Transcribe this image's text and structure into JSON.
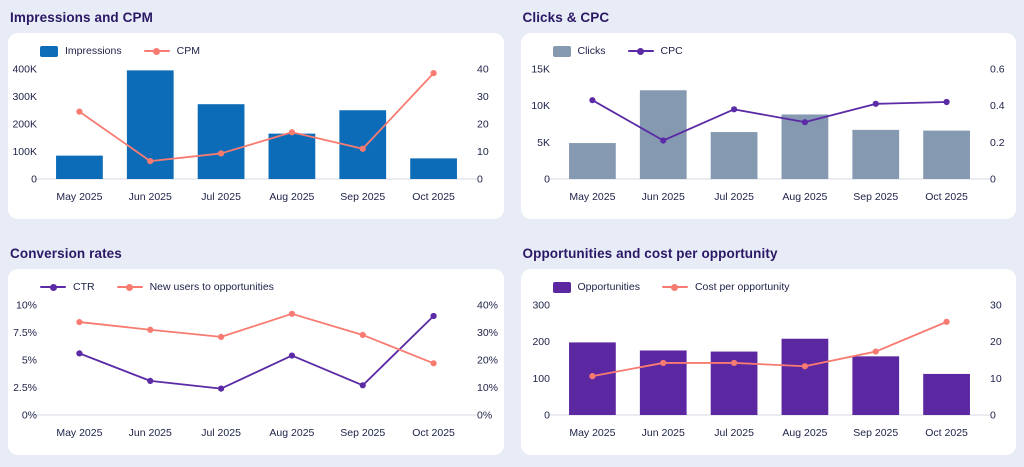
{
  "page": {
    "background_color": "#e8ecf7",
    "card_color": "#ffffff",
    "title_color": "#2b1865",
    "axis_text_color": "#20244a"
  },
  "chart_data": [
    {
      "type": "bar",
      "title": "Impressions and CPM",
      "categories": [
        "May 2025",
        "Jun 2025",
        "Jul 2025",
        "Aug 2025",
        "Sep 2025",
        "Oct 2025"
      ],
      "grid": false,
      "legend_position": "top-left",
      "left_axis": {
        "max": 400000,
        "ticks": [
          "0",
          "100K",
          "200K",
          "300K",
          "400K"
        ]
      },
      "right_axis": {
        "max": 40,
        "ticks": [
          "0",
          "10",
          "20",
          "30",
          "40"
        ]
      },
      "series": [
        {
          "name": "Impressions",
          "type": "bar",
          "axis": "left",
          "color": "#0c6cb8",
          "values": [
            85000,
            395000,
            272000,
            165000,
            250000,
            75000
          ]
        },
        {
          "name": "CPM",
          "type": "line",
          "axis": "right",
          "color": "#f87b72",
          "values": [
            24.5,
            6.5,
            9.3,
            17,
            11,
            38.5
          ]
        }
      ]
    },
    {
      "type": "bar",
      "title": "Clicks & CPC",
      "categories": [
        "May 2025",
        "Jun 2025",
        "Jul 2025",
        "Aug 2025",
        "Sep 2025",
        "Oct 2025"
      ],
      "grid": false,
      "legend_position": "top-left",
      "left_axis": {
        "max": 15000,
        "ticks": [
          "0",
          "5K",
          "10K",
          "15K"
        ]
      },
      "right_axis": {
        "max": 0.6,
        "ticks": [
          "0",
          "0.2",
          "0.4",
          "0.6"
        ]
      },
      "series": [
        {
          "name": "Clicks",
          "type": "bar",
          "axis": "left",
          "color": "#8599b1",
          "values": [
            4900,
            12100,
            6400,
            8800,
            6700,
            6600
          ]
        },
        {
          "name": "CPC",
          "type": "line",
          "axis": "right",
          "color": "#5b2aa5",
          "values": [
            0.43,
            0.21,
            0.38,
            0.31,
            0.41,
            0.42
          ]
        }
      ]
    },
    {
      "type": "line",
      "title": "Conversion rates",
      "categories": [
        "May 2025",
        "Jun 2025",
        "Jul 2025",
        "Aug 2025",
        "Sep 2025",
        "Oct 2025"
      ],
      "grid": false,
      "legend_position": "top-left",
      "left_axis": {
        "max": 10,
        "ticks": [
          "0%",
          "2.5%",
          "5%",
          "7.5%",
          "10%"
        ]
      },
      "right_axis": {
        "max": 40,
        "ticks": [
          "0%",
          "10%",
          "20%",
          "30%",
          "40%"
        ]
      },
      "series": [
        {
          "name": "CTR",
          "type": "line",
          "axis": "left",
          "color": "#5b2aa5",
          "values": [
            5.6,
            3.1,
            2.4,
            5.4,
            2.7,
            9.0
          ]
        },
        {
          "name": "New users to opportunities",
          "type": "line",
          "axis": "right",
          "color": "#f87b72",
          "values": [
            33.8,
            31.0,
            28.4,
            36.8,
            29.1,
            18.8
          ]
        }
      ]
    },
    {
      "type": "bar",
      "title": "Opportunities and cost per opportunity",
      "categories": [
        "May 2025",
        "Jun 2025",
        "Jul 2025",
        "Aug 2025",
        "Sep 2025",
        "Oct 2025"
      ],
      "grid": false,
      "legend_position": "top-left",
      "left_axis": {
        "max": 300,
        "ticks": [
          "0",
          "100",
          "200",
          "300"
        ]
      },
      "right_axis": {
        "max": 30,
        "ticks": [
          "0",
          "10",
          "20",
          "30"
        ]
      },
      "series": [
        {
          "name": "Opportunities",
          "type": "bar",
          "axis": "left",
          "color": "#5c28a2",
          "values": [
            198,
            176,
            173,
            208,
            160,
            112
          ]
        },
        {
          "name": "Cost per opportunity",
          "type": "line",
          "axis": "right",
          "color": "#f87b72",
          "values": [
            10.6,
            14.2,
            14.2,
            13.3,
            17.3,
            25.4
          ]
        }
      ]
    }
  ]
}
